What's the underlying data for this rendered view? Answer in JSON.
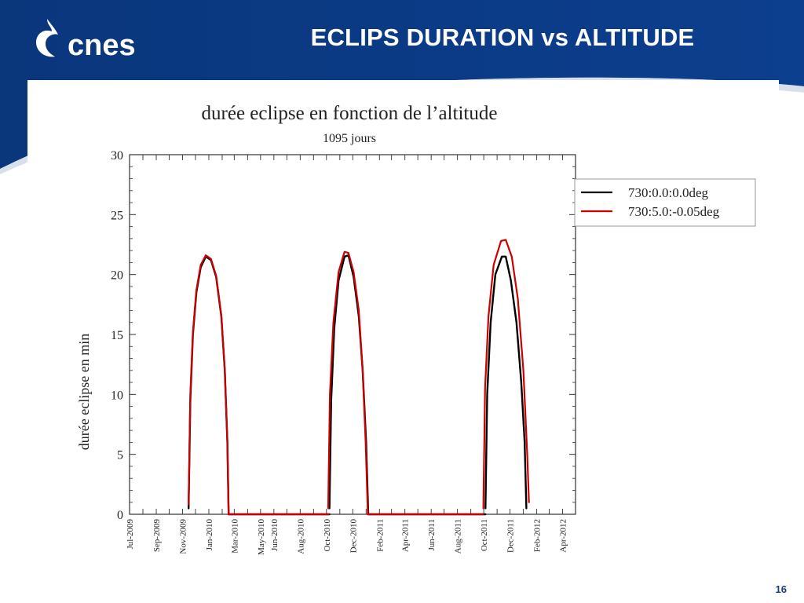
{
  "slide": {
    "title": "ECLIPS DURATION vs ALTITUDE",
    "brand": "cnes",
    "page_number": "16",
    "colors": {
      "banner": "#0b3a85",
      "banner_dark": "#072a66",
      "text": "#ffffff"
    }
  },
  "chart_data": {
    "type": "line",
    "title": "durée eclipse en fonction de l’altitude",
    "subtitle": "1095 jours",
    "xlabel": "",
    "ylabel": "durée eclipse en min",
    "ylim": [
      0,
      30
    ],
    "yticks": [
      0,
      5,
      10,
      15,
      20,
      25,
      30
    ],
    "xlim": [
      "2009-07-01",
      "2012-05-01"
    ],
    "xticks": [
      "Jul-2009",
      "Sep-2009",
      "Nov-2009",
      "Jan-2010",
      "Mar-2010",
      "May-2010",
      "Jun-2010",
      "Aug-2010",
      "Oct-2010",
      "Dec-2010",
      "Feb-2011",
      "Apr-2011",
      "Jun-2011",
      "Aug-2011",
      "Oct-2011",
      "Dec-2011",
      "Feb-2012",
      "Apr-2012"
    ],
    "grid": false,
    "legend": "top-right, outside plot",
    "series": [
      {
        "name": "730:0.0:0.0deg",
        "color": "#000000",
        "segments": [
          [
            [
              "2009-11-15",
              0.5
            ],
            [
              "2009-11-19",
              9.5
            ],
            [
              "2009-11-25",
              15
            ],
            [
              "2009-12-03",
              18.5
            ],
            [
              "2009-12-13",
              20.6
            ],
            [
              "2009-12-25",
              21.5
            ],
            [
              "2010-01-06",
              21.2
            ],
            [
              "2010-01-18",
              19.8
            ],
            [
              "2010-01-30",
              16.5
            ],
            [
              "2010-02-07",
              12
            ],
            [
              "2010-02-13",
              6
            ],
            [
              "2010-02-16",
              0
            ]
          ],
          [
            [
              "2010-02-16",
              0
            ],
            [
              "2010-10-08",
              0
            ]
          ],
          [
            [
              "2010-10-08",
              0.5
            ],
            [
              "2010-10-12",
              9.5
            ],
            [
              "2010-10-19",
              15.5
            ],
            [
              "2010-10-29",
              19.5
            ],
            [
              "2010-11-12",
              21.5
            ],
            [
              "2010-11-21",
              21.6
            ],
            [
              "2010-12-03",
              19.8
            ],
            [
              "2010-12-15",
              16.5
            ],
            [
              "2010-12-24",
              12
            ],
            [
              "2011-01-01",
              6
            ],
            [
              "2011-01-06",
              0
            ]
          ],
          [
            [
              "2011-01-06",
              0
            ],
            [
              "2011-10-05",
              0
            ]
          ],
          [
            [
              "2011-10-05",
              0.5
            ],
            [
              "2011-10-09",
              10
            ],
            [
              "2011-10-17",
              16
            ],
            [
              "2011-10-28",
              20
            ],
            [
              "2011-11-12",
              21.5
            ],
            [
              "2011-11-21",
              21.5
            ],
            [
              "2011-12-03",
              19.5
            ],
            [
              "2011-12-16",
              16
            ],
            [
              "2011-12-27",
              11
            ],
            [
              "2012-01-04",
              6
            ],
            [
              "2012-01-08",
              0.5
            ]
          ]
        ]
      },
      {
        "name": "730:5.0:-0.05deg",
        "color": "#cc0000",
        "segments": [
          [
            [
              "2009-11-15",
              0.8
            ],
            [
              "2009-11-19",
              10
            ],
            [
              "2009-11-25",
              15.2
            ],
            [
              "2009-12-03",
              18.7
            ],
            [
              "2009-12-13",
              20.8
            ],
            [
              "2009-12-25",
              21.6
            ],
            [
              "2010-01-06",
              21.3
            ],
            [
              "2010-01-18",
              19.9
            ],
            [
              "2010-01-30",
              16.6
            ],
            [
              "2010-02-07",
              12
            ],
            [
              "2010-02-13",
              6
            ],
            [
              "2010-02-16",
              0
            ]
          ],
          [
            [
              "2010-02-16",
              0
            ],
            [
              "2010-10-05",
              0
            ]
          ],
          [
            [
              "2010-10-05",
              0.5
            ],
            [
              "2010-10-09",
              10
            ],
            [
              "2010-10-17",
              16
            ],
            [
              "2010-10-29",
              20.2
            ],
            [
              "2010-11-12",
              21.9
            ],
            [
              "2010-11-21",
              21.8
            ],
            [
              "2010-12-03",
              20.2
            ],
            [
              "2010-12-15",
              17
            ],
            [
              "2010-12-24",
              12
            ],
            [
              "2010-12-31",
              6
            ],
            [
              "2011-01-05",
              0
            ]
          ],
          [
            [
              "2011-01-05",
              0
            ],
            [
              "2011-09-30",
              0
            ]
          ],
          [
            [
              "2011-09-30",
              0.5
            ],
            [
              "2011-10-04",
              10.5
            ],
            [
              "2011-10-12",
              16.5
            ],
            [
              "2011-10-24",
              20.8
            ],
            [
              "2011-11-10",
              22.8
            ],
            [
              "2011-11-21",
              22.9
            ],
            [
              "2011-12-05",
              21.5
            ],
            [
              "2011-12-19",
              18
            ],
            [
              "2012-01-01",
              12
            ],
            [
              "2012-01-10",
              5
            ],
            [
              "2012-01-14",
              1
            ]
          ]
        ]
      }
    ]
  }
}
